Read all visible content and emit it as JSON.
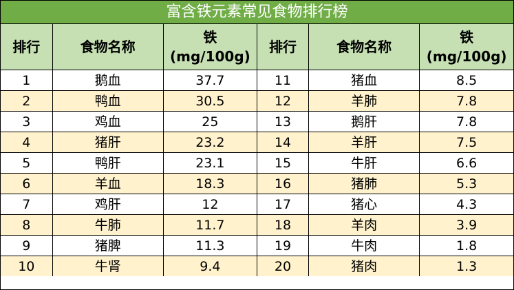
{
  "title": "富含铁元素常见食物排行榜",
  "colors": {
    "title_bg": "#70ad47",
    "header_bg": "#c6e0b4",
    "odd_row_bg": "#ffffff",
    "even_row_bg": "#fff2cc"
  },
  "headers": {
    "rank": "排行",
    "food": "食物名称",
    "iron_line1": "铁",
    "iron_line2": "(mg/100g)"
  },
  "rows": [
    {
      "rank_left": "1",
      "food_left": "鹅血",
      "iron_left": "37.7",
      "rank_right": "11",
      "food_right": "猪血",
      "iron_right": "8.5"
    },
    {
      "rank_left": "2",
      "food_left": "鸭血",
      "iron_left": "30.5",
      "rank_right": "12",
      "food_right": "羊肺",
      "iron_right": "7.8"
    },
    {
      "rank_left": "3",
      "food_left": "鸡血",
      "iron_left": "25",
      "rank_right": "13",
      "food_right": "鹅肝",
      "iron_right": "7.8"
    },
    {
      "rank_left": "4",
      "food_left": "猪肝",
      "iron_left": "23.2",
      "rank_right": "14",
      "food_right": "羊肝",
      "iron_right": "7.5"
    },
    {
      "rank_left": "5",
      "food_left": "鸭肝",
      "iron_left": "23.1",
      "rank_right": "15",
      "food_right": "牛肝",
      "iron_right": "6.6"
    },
    {
      "rank_left": "6",
      "food_left": "羊血",
      "iron_left": "18.3",
      "rank_right": "16",
      "food_right": "猪肺",
      "iron_right": "5.3"
    },
    {
      "rank_left": "7",
      "food_left": "鸡肝",
      "iron_left": "12",
      "rank_right": "17",
      "food_right": "猪心",
      "iron_right": "4.3"
    },
    {
      "rank_left": "8",
      "food_left": "牛肺",
      "iron_left": "11.7",
      "rank_right": "18",
      "food_right": "羊肉",
      "iron_right": "3.9"
    },
    {
      "rank_left": "9",
      "food_left": "猪脾",
      "iron_left": "11.3",
      "rank_right": "19",
      "food_right": "牛肉",
      "iron_right": "1.8"
    },
    {
      "rank_left": "10",
      "food_left": "牛肾",
      "iron_left": "9.4",
      "rank_right": "20",
      "food_right": "猪肉",
      "iron_right": "1.3"
    }
  ]
}
